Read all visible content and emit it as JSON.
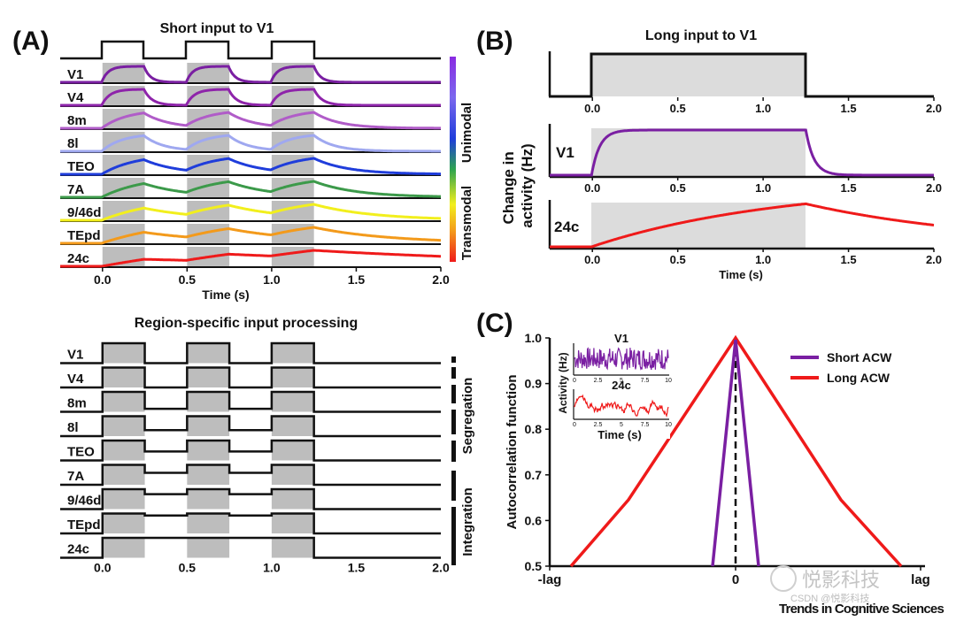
{
  "panels": {
    "A": {
      "letter": "(A)",
      "title": "Short input to V1",
      "xlabel": "Time (s)",
      "xticks": [
        "0.0",
        "0.5",
        "1.0",
        "1.5",
        "2.0"
      ],
      "colorbar_top": "Unimodal",
      "colorbar_bottom": "Transmodal",
      "regions": [
        {
          "label": "V1",
          "color": "#7a1fa2"
        },
        {
          "label": "V4",
          "color": "#8e24aa"
        },
        {
          "label": "8m",
          "color": "#b05cc8"
        },
        {
          "label": "8l",
          "color": "#9fa8f0"
        },
        {
          "label": "TEO",
          "color": "#1f3ddb"
        },
        {
          "label": "7A",
          "color": "#3c9a4a"
        },
        {
          "label": "9/46d",
          "color": "#f2ef1d"
        },
        {
          "label": "TEpd",
          "color": "#f39a1b"
        },
        {
          "label": "24c",
          "color": "#ef1a1a"
        }
      ],
      "pulse_windows_s": [
        [
          0.0,
          0.25
        ],
        [
          0.5,
          0.75
        ],
        [
          1.0,
          1.25
        ]
      ],
      "time_range_s": [
        -0.25,
        2.0
      ]
    },
    "A2": {
      "title": "Region-specific input processing",
      "xticks": [
        "0.0",
        "0.5",
        "1.0",
        "1.5",
        "2.0"
      ],
      "regions": [
        "V1",
        "V4",
        "8m",
        "8l",
        "TEO",
        "7A",
        "9/46d",
        "TEpd",
        "24c"
      ],
      "segregation_label": "Segregation",
      "integration_label": "Integration"
    },
    "B": {
      "letter": "(B)",
      "title": "Long input to V1",
      "xticks": [
        "0.0",
        "0.5",
        "1.0",
        "1.5",
        "2.0"
      ],
      "ylabel": "Change in activity (Hz)",
      "xlabel": "Time (s)",
      "trace1_label": "V1",
      "trace2_label": "24c",
      "input_window_s": [
        0.0,
        1.25
      ],
      "time_range_s": [
        -0.25,
        2.0
      ]
    },
    "C": {
      "letter": "(C)",
      "ylabel": "Autocorrelation function",
      "yticks": [
        "1.0",
        "0.9",
        "0.8",
        "0.7",
        "0.6",
        "0.5"
      ],
      "xticks": [
        "-lag",
        "0",
        "lag"
      ],
      "legend": [
        {
          "label": "Short ACW",
          "color": "#7a1fa2"
        },
        {
          "label": "Long ACW",
          "color": "#ef1a1a"
        }
      ],
      "inset": {
        "ylabel": "Activity (Hz)",
        "xlabel": "Time (s)",
        "trace1_label": "V1",
        "trace2_label": "24c",
        "xticks": [
          "0",
          "2.5",
          "5",
          "7.5",
          "10"
        ]
      }
    }
  },
  "watermark": "悦影科技",
  "watermark2": "CSDN @悦影科技",
  "footer": "Trends in Cognitive Sciences"
}
